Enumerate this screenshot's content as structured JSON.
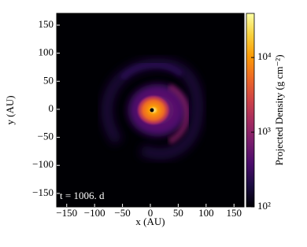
{
  "chart_data": {
    "type": "image",
    "xlabel": "x (AU)",
    "ylabel": "y (AU)",
    "annotation": "t = 1006. d",
    "xlim": [
      -168,
      168
    ],
    "ylim": [
      -174,
      171
    ],
    "xticks": [
      {
        "value": -150,
        "label": "−150"
      },
      {
        "value": -100,
        "label": "−100"
      },
      {
        "value": -50,
        "label": "−50"
      },
      0,
      50,
      100,
      150
    ],
    "yticks": [
      {
        "value": -150,
        "label": "−150"
      },
      {
        "value": -100,
        "label": "−100"
      },
      {
        "value": -50,
        "label": "−50"
      },
      0,
      50,
      100,
      150
    ],
    "colorbar": {
      "label": "Projected Density (g cm⁻²)",
      "log": true,
      "lim": [
        100,
        39000
      ],
      "ticks": [
        {
          "value": 100,
          "label": "10²"
        },
        {
          "value": 1000,
          "label": "10³"
        },
        {
          "value": 10000,
          "label": "10⁴"
        }
      ],
      "colormap": [
        "#000004",
        "#1b0c41",
        "#4a0c6b",
        "#781c6d",
        "#a52c60",
        "#cf4446",
        "#ed6925",
        "#fb9b06",
        "#f7d13d",
        "#fcffa4"
      ]
    }
  }
}
